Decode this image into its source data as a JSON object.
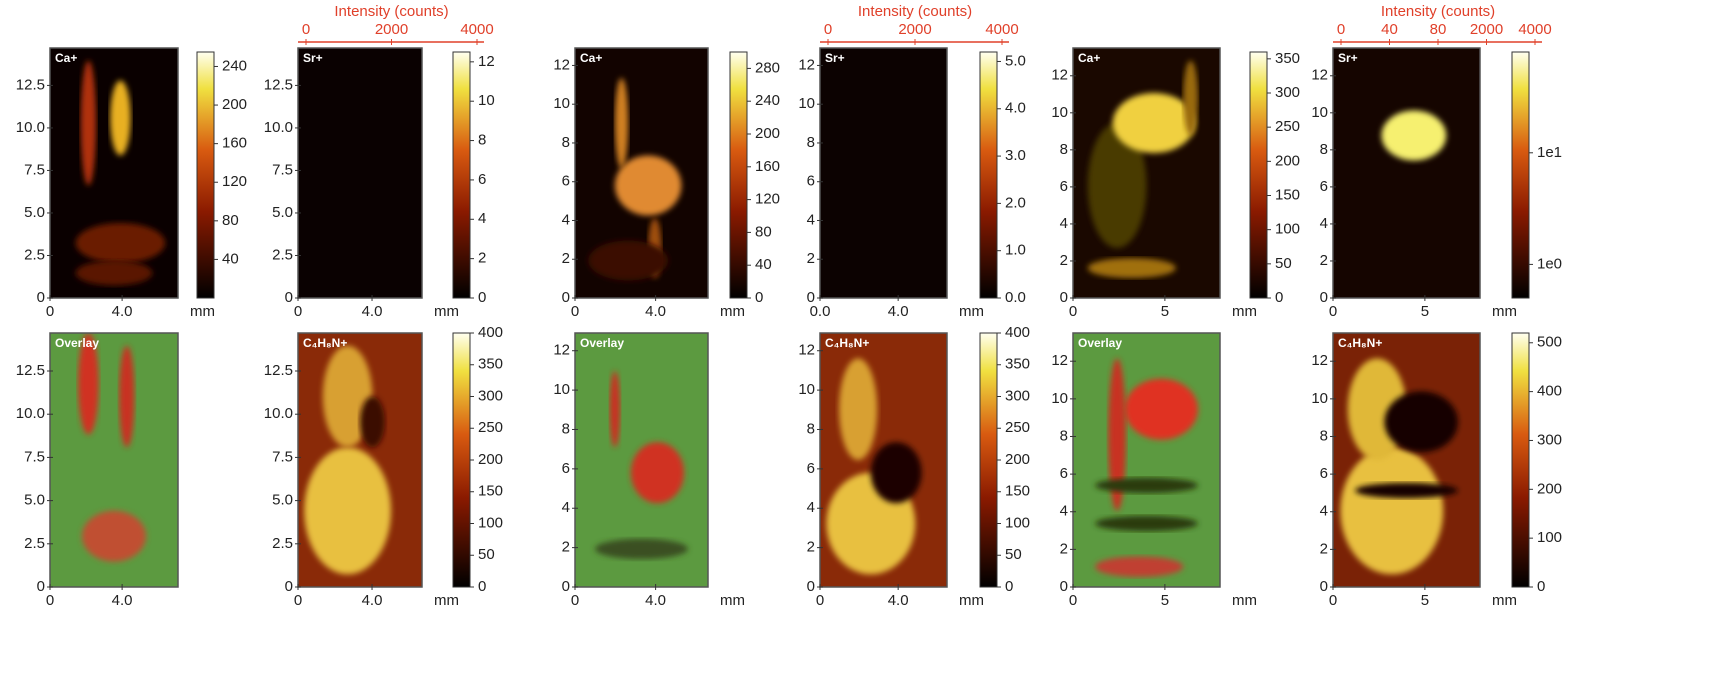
{
  "chart_data": [
    {
      "type": "heatmap",
      "label": "Ca+",
      "xlim": [
        0,
        7.1
      ],
      "ylim": [
        0,
        14.7
      ],
      "xticks": [
        0,
        {
          "value": 4,
          "label": "4.0"
        }
      ],
      "yticks": [
        0,
        2.5,
        {
          "value": 5,
          "label": "5.0"
        },
        7.5,
        {
          "value": 10,
          "label": "10.0"
        },
        12.5
      ],
      "x_label": "mm",
      "colorbar": {
        "lim": [
          0,
          255
        ],
        "ticks": [
          40,
          80,
          120,
          160,
          200,
          240
        ],
        "colormap": "hot"
      }
    },
    {
      "type": "heatmap",
      "label": "Sr+",
      "xlim": [
        0,
        6.7
      ],
      "ylim": [
        0,
        14.7
      ],
      "xticks": [
        0,
        {
          "value": 4,
          "label": "4.0"
        }
      ],
      "yticks": [
        0,
        2.5,
        {
          "value": 5,
          "label": "5.0"
        },
        7.5,
        {
          "value": 10,
          "label": "10.0"
        },
        12.5
      ],
      "x_label": "mm",
      "colorbar": {
        "lim": [
          0,
          12.5
        ],
        "ticks": [
          0,
          2,
          4,
          6,
          8,
          10,
          12
        ],
        "colormap": "hot"
      },
      "top_axis": {
        "label": "Intensity (counts)",
        "ticks": [
          0,
          2000,
          4000
        ]
      }
    },
    {
      "type": "heatmap",
      "label": "Ca+",
      "xlim": [
        0,
        6.6
      ],
      "ylim": [
        0,
        12.9
      ],
      "xticks": [
        0,
        {
          "value": 4,
          "label": "4.0"
        }
      ],
      "yticks": [
        0,
        2,
        4,
        6,
        8,
        10,
        12
      ],
      "x_label": "mm",
      "colorbar": {
        "lim": [
          0,
          300
        ],
        "ticks": [
          0,
          40,
          80,
          120,
          160,
          200,
          240,
          280
        ],
        "colormap": "hot"
      }
    },
    {
      "type": "heatmap",
      "label": "Sr+",
      "xlim": [
        0,
        6.5
      ],
      "ylim": [
        0,
        12.9
      ],
      "xticks": [
        {
          "value": 0,
          "label": "0.0"
        },
        {
          "value": 4,
          "label": "4.0"
        }
      ],
      "yticks": [
        0,
        2,
        4,
        6,
        8,
        10,
        12
      ],
      "x_label": "mm",
      "colorbar": {
        "lim": [
          0,
          5.2
        ],
        "ticks": [
          {
            "value": 0,
            "label": "0.0"
          },
          {
            "value": 1,
            "label": "1.0"
          },
          {
            "value": 2,
            "label": "2.0"
          },
          {
            "value": 3,
            "label": "3.0"
          },
          {
            "value": 4,
            "label": "4.0"
          },
          {
            "value": 5,
            "label": "5.0"
          }
        ],
        "colormap": "hot"
      },
      "top_axis": {
        "label": "Intensity (counts)",
        "ticks": [
          0,
          2000,
          4000
        ]
      }
    },
    {
      "type": "heatmap",
      "label": "Ca+",
      "xlim": [
        0,
        8
      ],
      "ylim": [
        0,
        13.5
      ],
      "xticks": [
        0,
        5
      ],
      "yticks": [
        0,
        2,
        4,
        6,
        8,
        10,
        12
      ],
      "x_label": "mm",
      "colorbar": {
        "lim": [
          0,
          360
        ],
        "ticks": [
          0,
          50,
          100,
          150,
          200,
          250,
          300,
          350
        ],
        "colormap": "hot"
      }
    },
    {
      "type": "heatmap",
      "label": "Sr+",
      "xlim": [
        0,
        8
      ],
      "ylim": [
        0,
        13.5
      ],
      "xticks": [
        0,
        5
      ],
      "yticks": [
        0,
        2,
        4,
        6,
        8,
        10,
        12
      ],
      "x_label": "mm",
      "colorbar": {
        "lim": [
          0.5,
          80
        ],
        "log": true,
        "ticks": [
          {
            "value": 1,
            "label": "1e0"
          },
          {
            "value": 10,
            "label": "1e1"
          }
        ],
        "colormap": "hot"
      },
      "top_axis": {
        "label": "Intensity (counts)",
        "ticks": [
          0,
          40,
          80,
          2000,
          4000
        ]
      }
    },
    {
      "type": "heatmap",
      "label": "Overlay",
      "xlim": [
        0,
        7.1
      ],
      "ylim": [
        0,
        14.7
      ],
      "xticks": [
        0,
        {
          "value": 4,
          "label": "4.0"
        }
      ],
      "yticks": [
        0,
        2.5,
        {
          "value": 5,
          "label": "5.0"
        },
        7.5,
        {
          "value": 10,
          "label": "10.0"
        },
        12.5
      ]
    },
    {
      "type": "heatmap",
      "label": "C₄H₈N+",
      "xlim": [
        0,
        6.7
      ],
      "ylim": [
        0,
        14.7
      ],
      "xticks": [
        0,
        {
          "value": 4,
          "label": "4.0"
        }
      ],
      "yticks": [
        0,
        2.5,
        {
          "value": 5,
          "label": "5.0"
        },
        7.5,
        {
          "value": 10,
          "label": "10.0"
        },
        12.5
      ],
      "x_label": "mm",
      "colorbar": {
        "lim": [
          0,
          400
        ],
        "ticks": [
          0,
          50,
          100,
          150,
          200,
          250,
          300,
          350,
          400
        ],
        "colormap": "hot"
      }
    },
    {
      "type": "heatmap",
      "label": "Overlay",
      "xlim": [
        0,
        6.6
      ],
      "ylim": [
        0,
        12.9
      ],
      "xticks": [
        0,
        {
          "value": 4,
          "label": "4.0"
        }
      ],
      "yticks": [
        0,
        2,
        4,
        6,
        8,
        10,
        12
      ],
      "x_label": "mm"
    },
    {
      "type": "heatmap",
      "label": "C₄H₈N+",
      "xlim": [
        0,
        6.5
      ],
      "ylim": [
        0,
        12.9
      ],
      "xticks": [
        0,
        {
          "value": 4,
          "label": "4.0"
        }
      ],
      "yticks": [
        0,
        2,
        4,
        6,
        8,
        10,
        12
      ],
      "x_label": "mm",
      "colorbar": {
        "lim": [
          0,
          400
        ],
        "ticks": [
          0,
          50,
          100,
          150,
          200,
          250,
          300,
          350,
          400
        ],
        "colormap": "hot"
      }
    },
    {
      "type": "heatmap",
      "label": "Overlay",
      "xlim": [
        0,
        8
      ],
      "ylim": [
        0,
        13.5
      ],
      "xticks": [
        0,
        5
      ],
      "yticks": [
        0,
        2,
        4,
        6,
        8,
        10,
        12
      ],
      "x_label": "mm"
    },
    {
      "type": "heatmap",
      "label": "C₄H₈N+",
      "xlim": [
        0,
        8
      ],
      "ylim": [
        0,
        13.5
      ],
      "xticks": [
        0,
        5
      ],
      "yticks": [
        0,
        2,
        4,
        6,
        8,
        10,
        12
      ],
      "x_label": "mm",
      "colorbar": {
        "lim": [
          0,
          520
        ],
        "ticks": [
          0,
          100,
          200,
          300,
          400,
          500
        ],
        "colormap": "hot"
      }
    }
  ]
}
